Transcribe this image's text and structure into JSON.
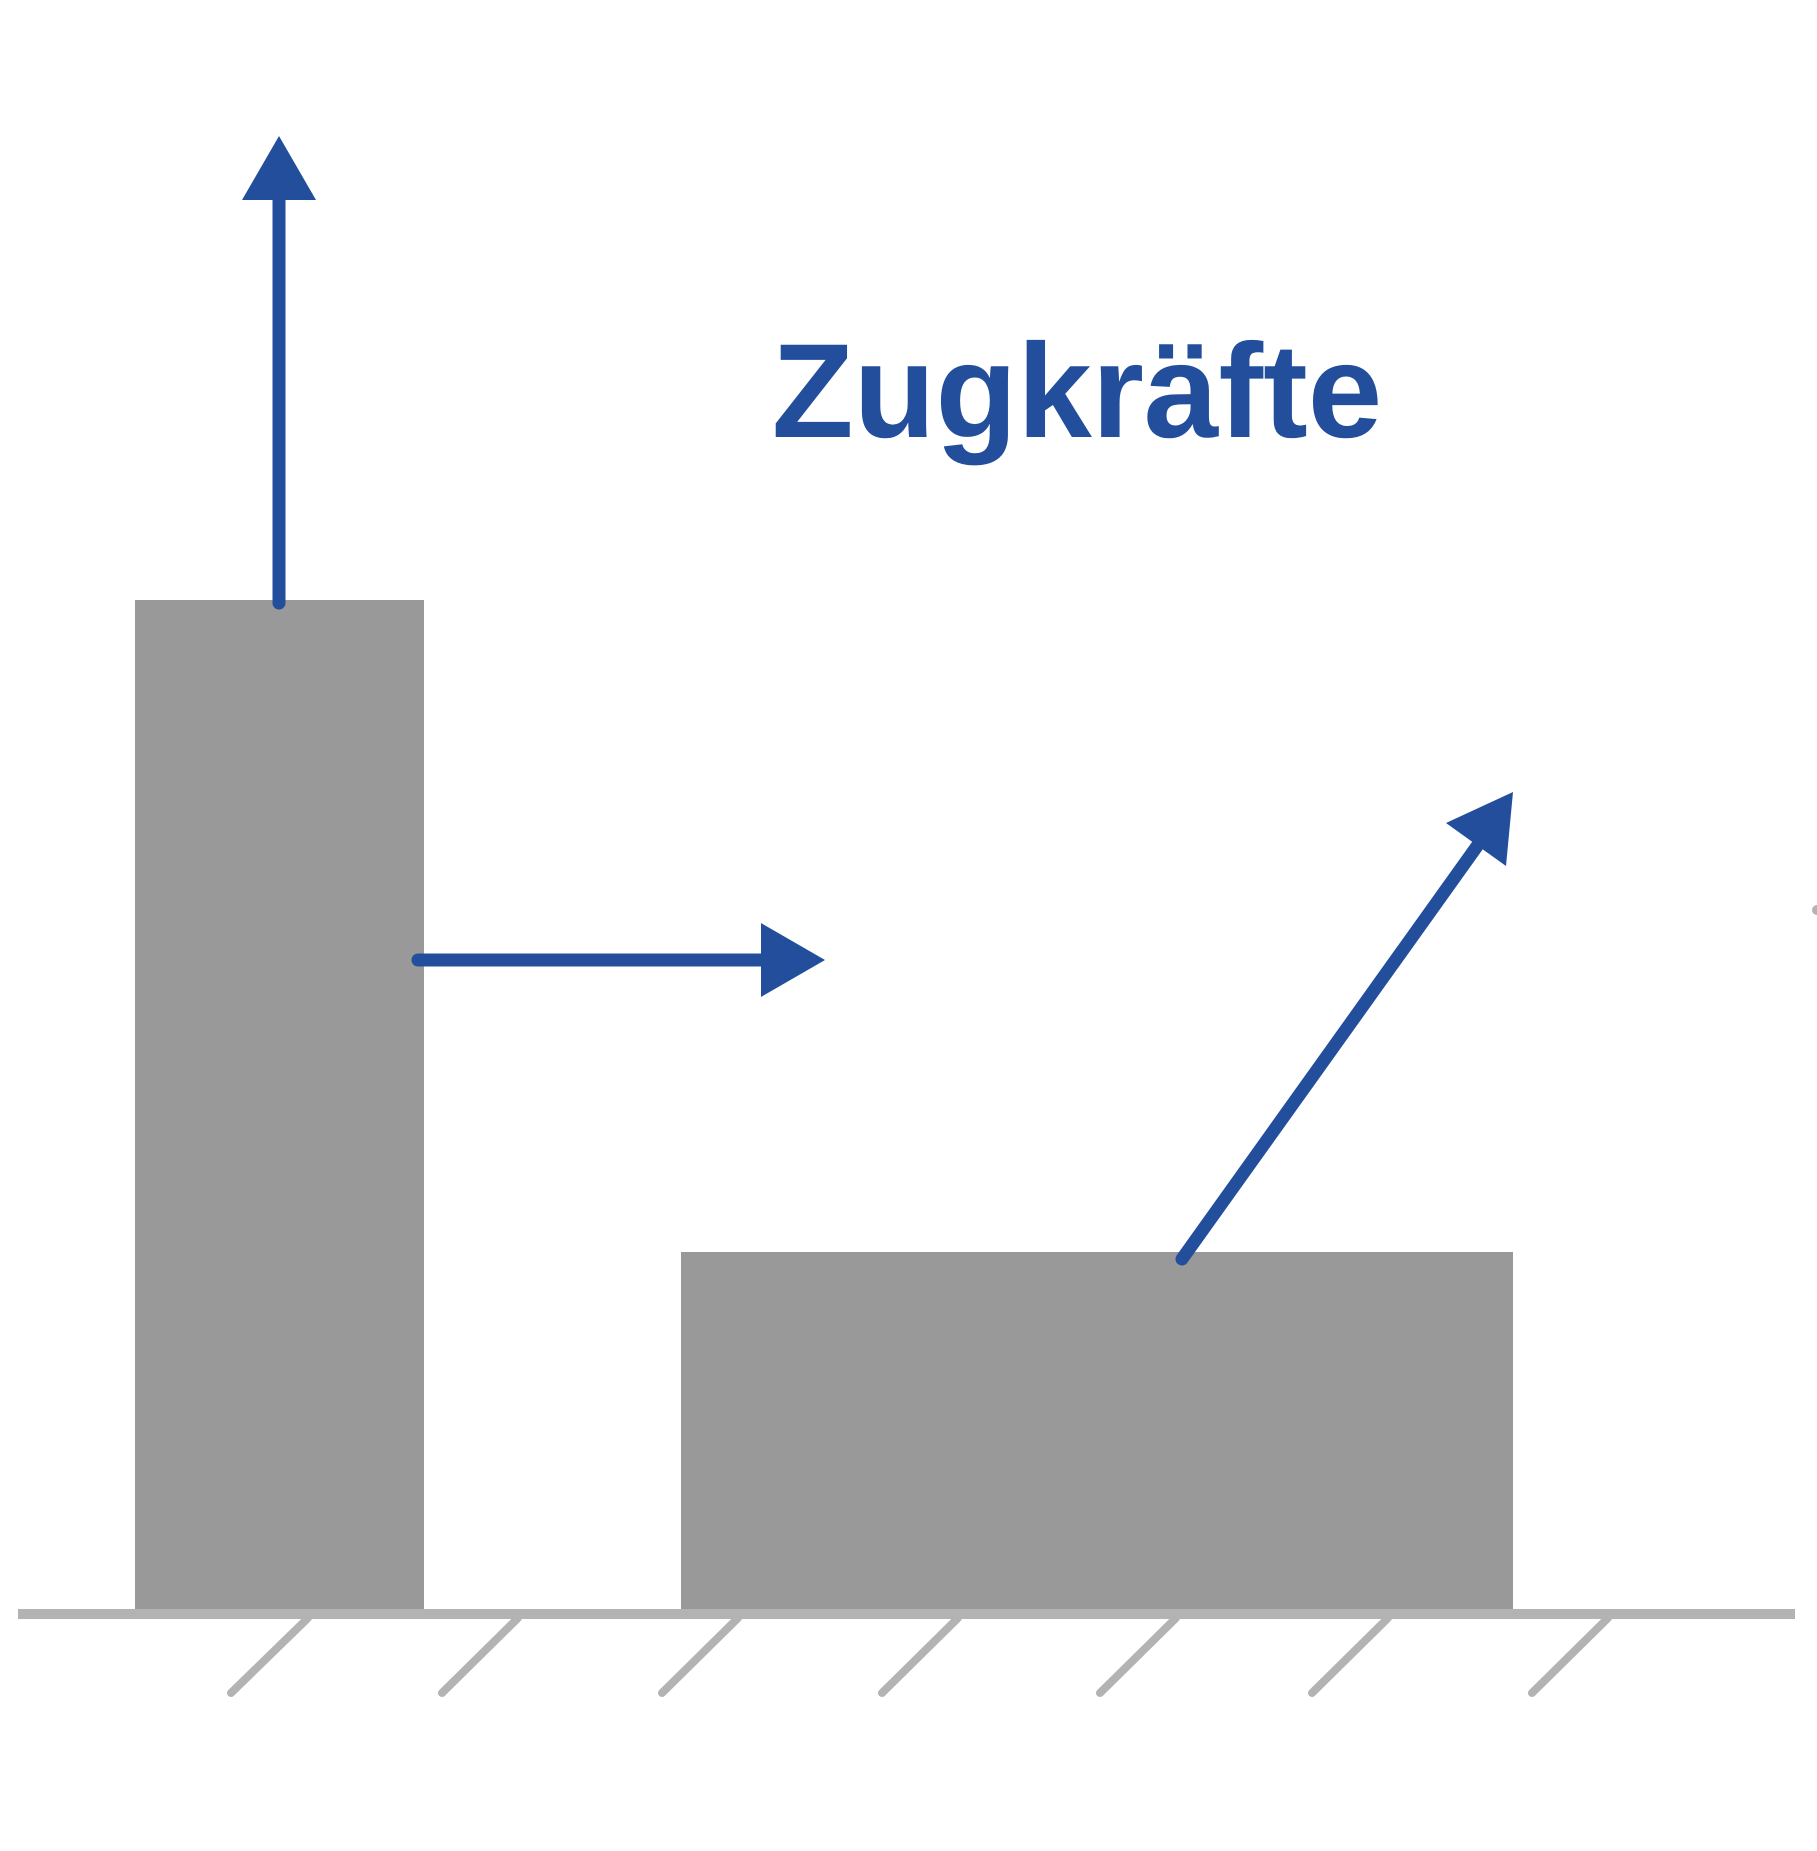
{
  "title": "Zugkräfte",
  "colors": {
    "force_arrow": "#224e9c",
    "body": "#999999",
    "ground": "#b3b3b3",
    "background": "#ffffff"
  },
  "icons": {
    "ground_hatch": "diagonal-hatch-lines"
  }
}
